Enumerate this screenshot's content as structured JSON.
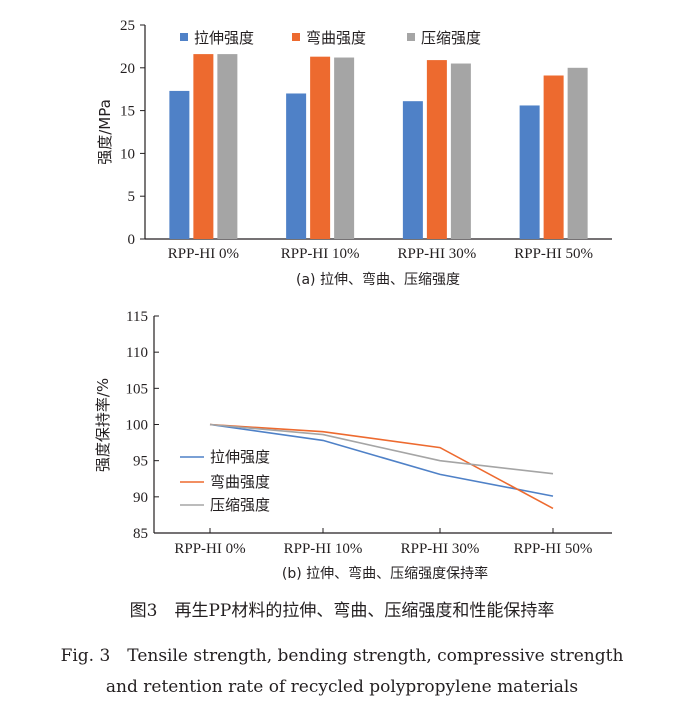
{
  "chart_data": [
    {
      "type": "bar",
      "title": "",
      "caption": "(a) 拉伸、弯曲、压缩强度",
      "ylabel": "强度/MPa",
      "xlabel": "",
      "ylim": [
        0,
        25
      ],
      "yticks": [
        0,
        5,
        10,
        15,
        20,
        25
      ],
      "categories": [
        "RPP-HI 0%",
        "RPP-HI 10%",
        "RPP-HI 30%",
        "RPP-HI 50%"
      ],
      "series": [
        {
          "name": "拉伸强度",
          "values": [
            17.3,
            17.0,
            16.1,
            15.6
          ],
          "color": "#4f81c7"
        },
        {
          "name": "弯曲强度",
          "values": [
            21.6,
            21.3,
            20.9,
            19.1
          ],
          "color": "#ed6a2f"
        },
        {
          "name": "压缩强度",
          "values": [
            21.6,
            21.2,
            20.5,
            20.0
          ],
          "color": "#a5a5a5"
        }
      ],
      "legend": "top"
    },
    {
      "type": "line",
      "title": "",
      "caption": "(b) 拉伸、弯曲、压缩强度保持率",
      "ylabel": "强度保持率/%",
      "xlabel": "",
      "ylim": [
        85,
        115
      ],
      "yticks": [
        85,
        90,
        95,
        100,
        105,
        110,
        115
      ],
      "categories": [
        "RPP-HI 0%",
        "RPP-HI 10%",
        "RPP-HI 30%",
        "RPP-HI 50%"
      ],
      "series": [
        {
          "name": "拉伸强度",
          "values": [
            100,
            97.8,
            93.1,
            90.1
          ],
          "color": "#4f81c7"
        },
        {
          "name": "弯曲强度",
          "values": [
            100,
            99.0,
            96.8,
            88.4
          ],
          "color": "#ed6a2f"
        },
        {
          "name": "压缩强度",
          "values": [
            100,
            98.6,
            95.0,
            93.2
          ],
          "color": "#a5a5a5"
        }
      ],
      "legend": "bottom-left"
    }
  ],
  "figure": {
    "caption_cn": "图3　再生PP材料的拉伸、弯曲、压缩强度和性能保持率",
    "caption_en_line1": "Fig. 3　Tensile strength, bending strength, compressive strength",
    "caption_en_line2": "and retention rate of recycled polypropylene materials"
  }
}
